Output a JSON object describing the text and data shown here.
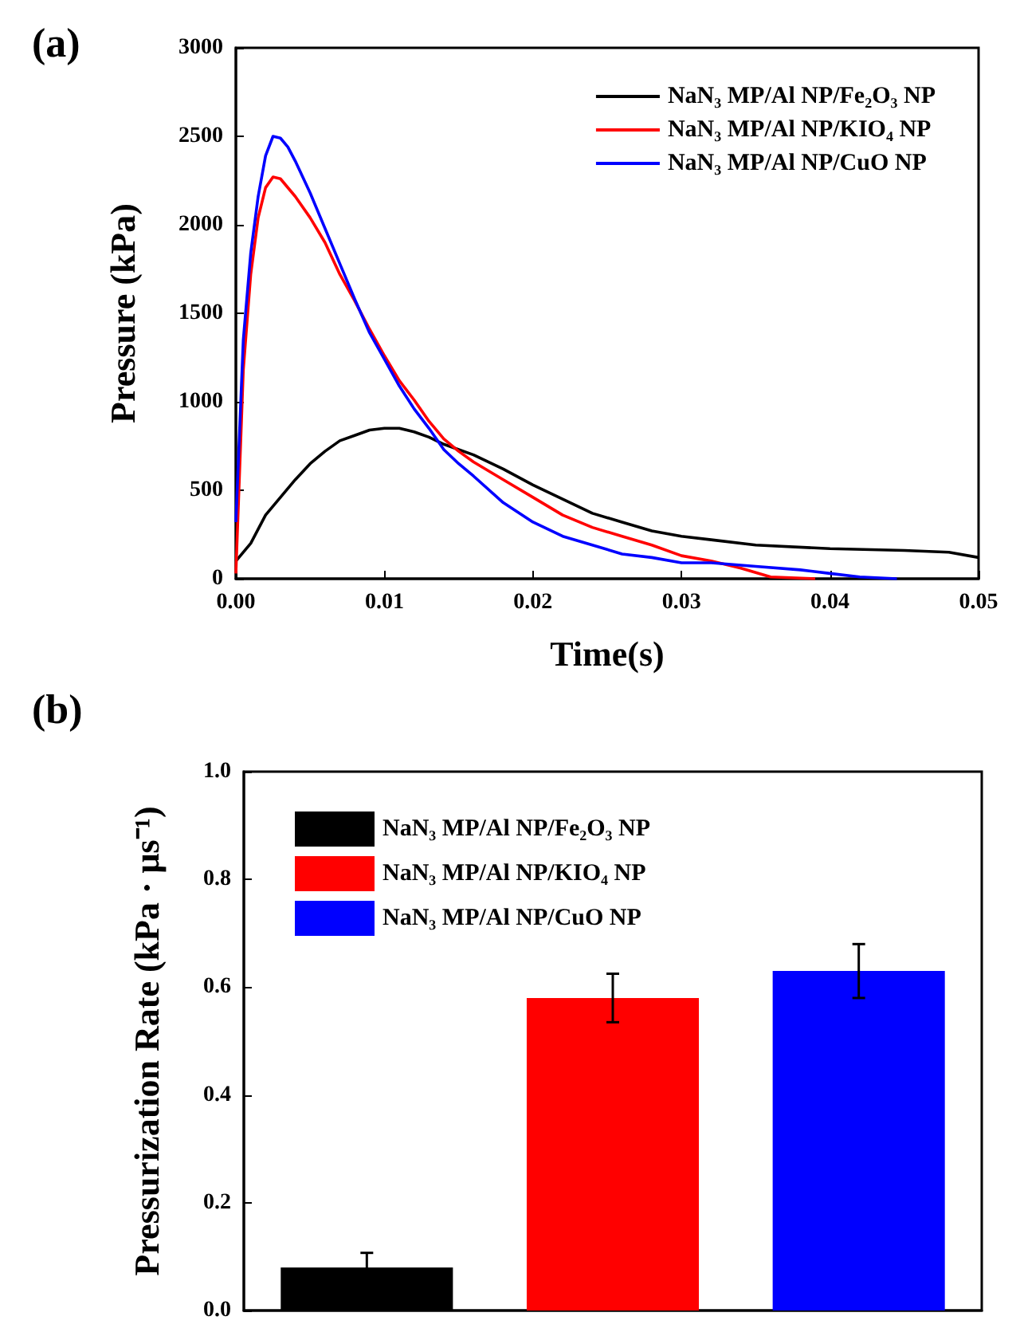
{
  "chart_data": [
    {
      "type": "line",
      "annotations": [
        "(a)"
      ],
      "xlabel": "Time(s)",
      "ylabel": "Pressure (kPa)",
      "legend": "top right",
      "xlim": [
        0,
        0.05
      ],
      "xticks": [
        {
          "value": 0,
          "label": "0.00"
        },
        {
          "value": 0.01,
          "label": "0.01"
        },
        {
          "value": 0.02,
          "label": "0.02"
        },
        {
          "value": 0.03,
          "label": "0.03"
        },
        {
          "value": 0.04,
          "label": "0.04"
        },
        {
          "value": 0.05,
          "label": "0.05"
        }
      ],
      "ylim": [
        0,
        3000
      ],
      "yticks": [
        0,
        500,
        1000,
        1500,
        2000,
        2500,
        3000
      ],
      "series": [
        {
          "name": "NaN₃ MP/Al NP/Fe₂O₃ NP",
          "color": "#000000",
          "x": [
            0,
            0.001,
            0.002,
            0.003,
            0.004,
            0.005,
            0.006,
            0.007,
            0.008,
            0.009,
            0.01,
            0.011,
            0.012,
            0.013,
            0.014,
            0.015,
            0.016,
            0.018,
            0.02,
            0.022,
            0.024,
            0.026,
            0.028,
            0.03,
            0.032,
            0.035,
            0.04,
            0.045,
            0.048,
            0.05
          ],
          "values": [
            100,
            200,
            360,
            460,
            560,
            650,
            720,
            780,
            810,
            840,
            850,
            850,
            830,
            800,
            760,
            730,
            700,
            620,
            530,
            450,
            370,
            320,
            270,
            240,
            220,
            190,
            170,
            160,
            150,
            120
          ]
        },
        {
          "name": "NaN₃ MP/Al NP/KIO₄ NP",
          "color": "#ff0000",
          "x": [
            0,
            0.0005,
            0.001,
            0.0015,
            0.002,
            0.0025,
            0.003,
            0.004,
            0.005,
            0.006,
            0.007,
            0.008,
            0.009,
            0.01,
            0.011,
            0.012,
            0.013,
            0.014,
            0.015,
            0.016,
            0.018,
            0.02,
            0.022,
            0.024,
            0.026,
            0.028,
            0.03,
            0.032,
            0.034,
            0.036,
            0.039
          ],
          "values": [
            30,
            1180,
            1720,
            2040,
            2210,
            2270,
            2260,
            2160,
            2040,
            1900,
            1720,
            1570,
            1410,
            1260,
            1120,
            1010,
            890,
            790,
            720,
            660,
            560,
            460,
            360,
            290,
            240,
            190,
            130,
            100,
            60,
            10,
            0
          ]
        },
        {
          "name": "NaN₃ MP/Al NP/CuO NP",
          "color": "#0000ff",
          "x": [
            0,
            0.0005,
            0.001,
            0.0015,
            0.002,
            0.0025,
            0.003,
            0.0035,
            0.004,
            0.005,
            0.006,
            0.007,
            0.008,
            0.009,
            0.01,
            0.011,
            0.012,
            0.013,
            0.014,
            0.015,
            0.016,
            0.018,
            0.02,
            0.022,
            0.024,
            0.026,
            0.028,
            0.03,
            0.032,
            0.035,
            0.038,
            0.04,
            0.042,
            0.0445
          ],
          "values": [
            320,
            1350,
            1840,
            2160,
            2390,
            2500,
            2490,
            2440,
            2360,
            2180,
            1980,
            1780,
            1580,
            1390,
            1240,
            1090,
            960,
            850,
            730,
            650,
            580,
            430,
            320,
            240,
            190,
            140,
            120,
            90,
            90,
            70,
            50,
            30,
            10,
            0
          ]
        }
      ]
    },
    {
      "type": "bar",
      "annotations": [
        "(b)"
      ],
      "ylabel": "Pressurization Rate (kPa · μs⁻¹)",
      "legend": "top left",
      "categories": [
        null,
        null,
        null
      ],
      "ylim": [
        0,
        1
      ],
      "yticks": [
        {
          "value": 0,
          "label": "0.0"
        },
        {
          "value": 0.2,
          "label": "0.2"
        },
        {
          "value": 0.4,
          "label": "0.4"
        },
        {
          "value": 0.6,
          "label": "0.6"
        },
        {
          "value": 0.8,
          "label": "0.8"
        },
        {
          "value": 1,
          "label": "1.0"
        }
      ],
      "series": [
        {
          "name": "NaN₃ MP/Al NP/Fe₂O₃ NP",
          "color": "#000000",
          "values": [
            0.08,
            null,
            null
          ],
          "errors": [
            0.027,
            null,
            null
          ]
        },
        {
          "name": "NaN₃ MP/Al NP/KIO₄ NP",
          "color": "#ff0000",
          "values": [
            null,
            0.58,
            null
          ],
          "errors": [
            null,
            0.045,
            null
          ]
        },
        {
          "name": "NaN₃ MP/Al NP/CuO NP",
          "color": "#0000ff",
          "values": [
            null,
            null,
            0.63
          ],
          "errors": [
            null,
            null,
            0.05
          ]
        }
      ]
    }
  ]
}
